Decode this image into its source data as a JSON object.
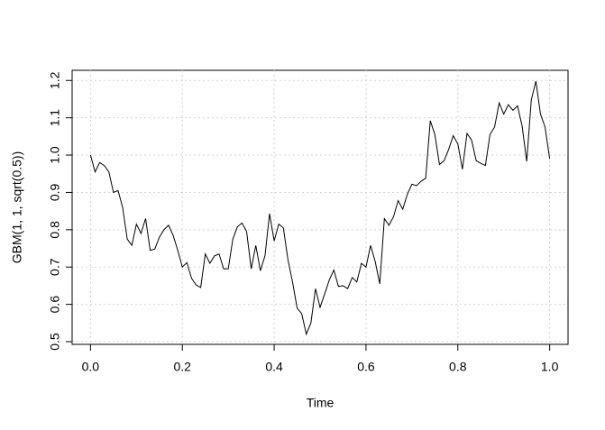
{
  "chart_data": {
    "type": "line",
    "x_label": "Time",
    "y_label": "GBM(1, 1, sqrt(0.5))",
    "x": [
      0,
      0.01,
      0.02,
      0.03,
      0.04,
      0.05,
      0.06,
      0.07,
      0.08,
      0.09,
      0.1,
      0.11,
      0.12,
      0.13,
      0.14,
      0.15,
      0.16,
      0.17,
      0.18,
      0.19,
      0.2,
      0.21,
      0.22,
      0.23,
      0.24,
      0.25,
      0.26,
      0.27,
      0.28,
      0.29,
      0.3,
      0.31,
      0.32,
      0.33,
      0.34,
      0.35,
      0.36,
      0.37,
      0.38,
      0.39,
      0.4,
      0.41,
      0.42,
      0.43,
      0.44,
      0.45,
      0.46,
      0.47,
      0.48,
      0.49,
      0.5,
      0.51,
      0.52,
      0.53,
      0.54,
      0.55,
      0.56,
      0.57,
      0.58,
      0.59,
      0.6,
      0.61,
      0.62,
      0.63,
      0.64,
      0.65,
      0.66,
      0.67,
      0.68,
      0.69,
      0.7,
      0.71,
      0.72,
      0.73,
      0.74,
      0.75,
      0.76,
      0.77,
      0.78,
      0.79,
      0.8,
      0.81,
      0.82,
      0.83,
      0.84,
      0.85,
      0.86,
      0.87,
      0.88,
      0.89,
      0.9,
      0.91,
      0.92,
      0.93,
      0.94,
      0.95,
      0.96,
      0.97,
      0.98,
      0.99,
      1
    ],
    "values": [
      1.0,
      0.955,
      0.98,
      0.972,
      0.955,
      0.9,
      0.905,
      0.86,
      0.775,
      0.758,
      0.815,
      0.79,
      0.83,
      0.745,
      0.748,
      0.78,
      0.8,
      0.812,
      0.785,
      0.745,
      0.7,
      0.712,
      0.67,
      0.652,
      0.645,
      0.735,
      0.71,
      0.73,
      0.735,
      0.695,
      0.695,
      0.775,
      0.808,
      0.818,
      0.795,
      0.695,
      0.758,
      0.69,
      0.73,
      0.843,
      0.77,
      0.815,
      0.805,
      0.72,
      0.66,
      0.59,
      0.575,
      0.52,
      0.55,
      0.642,
      0.592,
      0.628,
      0.665,
      0.692,
      0.648,
      0.65,
      0.642,
      0.672,
      0.66,
      0.71,
      0.7,
      0.758,
      0.715,
      0.655,
      0.83,
      0.812,
      0.835,
      0.878,
      0.855,
      0.895,
      0.922,
      0.918,
      0.93,
      0.938,
      1.092,
      1.055,
      0.975,
      0.985,
      1.015,
      1.052,
      1.03,
      0.962,
      1.058,
      1.04,
      0.985,
      0.978,
      0.972,
      1.055,
      1.075,
      1.14,
      1.11,
      1.135,
      1.12,
      1.132,
      1.078,
      0.983,
      1.148,
      1.198,
      1.11,
      1.075,
      0.99
    ],
    "color": "#000000",
    "xlim": [
      -0.04,
      1.04
    ],
    "ylim": [
      0.4928,
      1.2272
    ],
    "xticks": [
      {
        "value": 0,
        "label": "0.0"
      },
      0.2,
      0.4,
      0.6,
      0.8,
      {
        "value": 1,
        "label": "1.0"
      }
    ],
    "yticks": [
      0.5,
      0.6,
      0.7,
      0.8,
      0.9,
      {
        "value": 1,
        "label": "1.0"
      },
      1.1,
      1.2
    ],
    "grid": true
  }
}
